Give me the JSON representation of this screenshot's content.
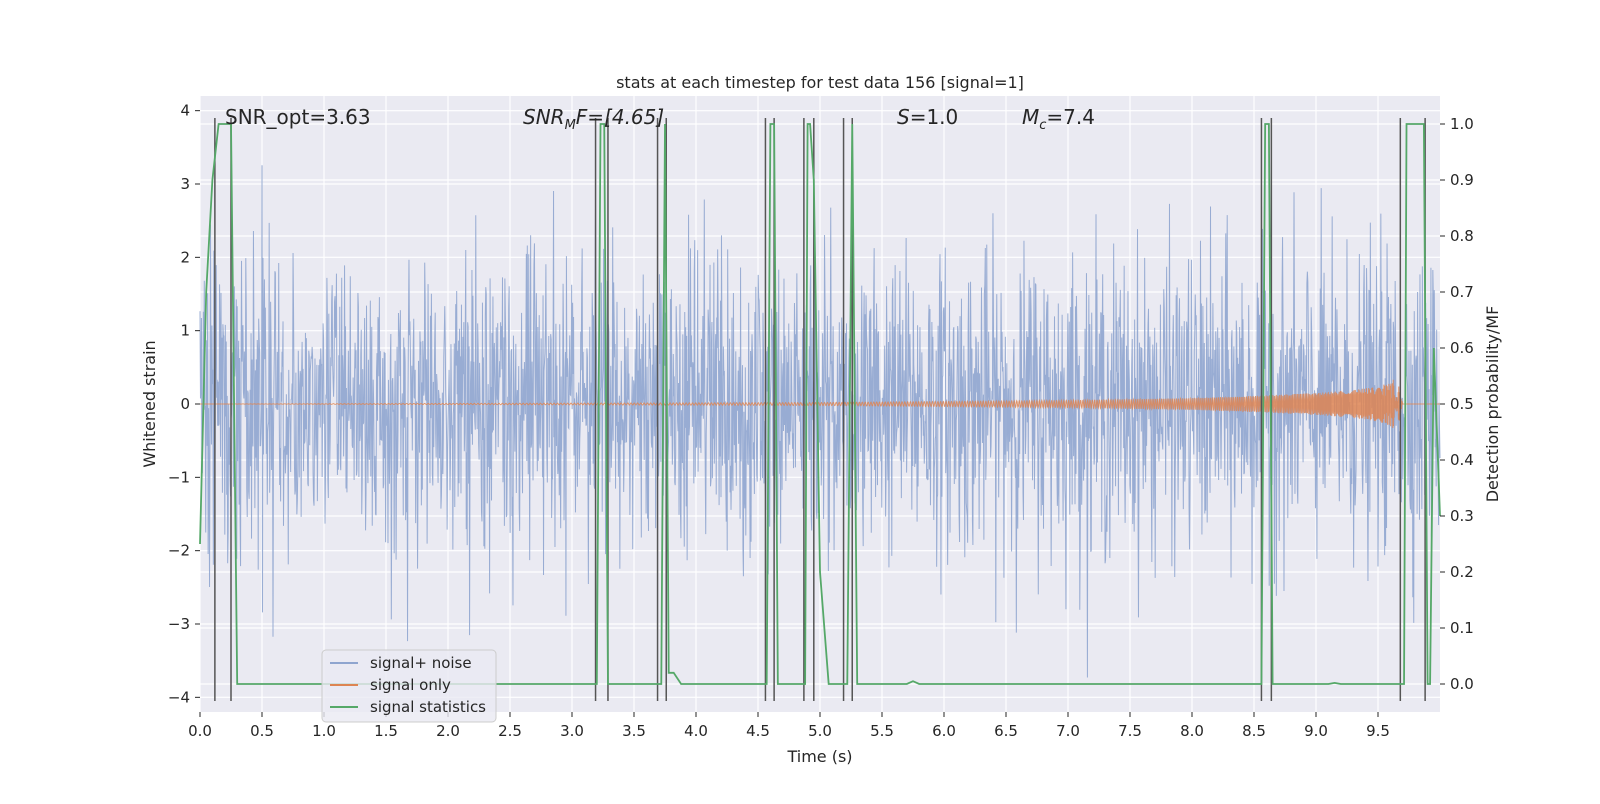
{
  "chart_data": {
    "type": "line",
    "title": "stats at each timestep for test data 156 [signal=1]",
    "xlabel": "Time (s)",
    "ylabel": "Whitened strain",
    "ylabel_right": "Detection probability/MF",
    "xlim": [
      0.0,
      10.0
    ],
    "ylim": [
      -4.2,
      4.2
    ],
    "ylim_right": [
      -0.05,
      1.05
    ],
    "x_ticks": [
      0.0,
      0.5,
      1.0,
      1.5,
      2.0,
      2.5,
      3.0,
      3.5,
      4.0,
      4.5,
      5.0,
      5.5,
      6.0,
      6.5,
      7.0,
      7.5,
      8.0,
      8.5,
      9.0,
      9.5
    ],
    "x_tick_labels": [
      "0.0",
      "0.5",
      "1.0",
      "1.5",
      "2.0",
      "2.5",
      "3.0",
      "3.5",
      "4.0",
      "4.5",
      "5.0",
      "5.5",
      "6.0",
      "6.5",
      "7.0",
      "7.5",
      "8.0",
      "8.5",
      "9.0",
      "9.5"
    ],
    "y_ticks": [
      4,
      3,
      2,
      1,
      0,
      -1,
      -2,
      -3,
      -4
    ],
    "y_tick_labels": [
      "4",
      "3",
      "2",
      "1",
      "0",
      "−1",
      "−2",
      "−3",
      "−4"
    ],
    "y_right_ticks": [
      1.0,
      0.9,
      0.8,
      0.7,
      0.6,
      0.5,
      0.4,
      0.3,
      0.2,
      0.1,
      0.0
    ],
    "y_right_tick_labels": [
      "1.0",
      "0.9",
      "0.8",
      "0.7",
      "0.6",
      "0.5",
      "0.4",
      "0.3",
      "0.2",
      "0.1",
      "0.0"
    ],
    "grid": true,
    "legend_position": "lower-left",
    "annotations": {
      "snr_opt": "SNR_opt=3.63",
      "snr_mf_main": "SNR",
      "snr_mf_sub": "M",
      "snr_mf_rest": "F=[4.65]",
      "s_italic": "S",
      "s_rest": "=1.0",
      "mc_main": "M",
      "mc_sub": "c",
      "mc_rest": "=7.4"
    },
    "series": [
      {
        "name": "signal+ noise",
        "color": "#8fa5cf",
        "kind": "noise",
        "amplitude_typical": 1.6,
        "amplitude_max": 3.9
      },
      {
        "name": "signal only",
        "color": "#dd8452",
        "kind": "chirp",
        "envelope": {
          "x": [
            0.0,
            5.0,
            7.0,
            8.0,
            8.5,
            9.0,
            9.3,
            9.5,
            9.6,
            9.65,
            9.7
          ],
          "amp": [
            0.0,
            0.02,
            0.05,
            0.08,
            0.11,
            0.15,
            0.19,
            0.24,
            0.3,
            0.38,
            0.0
          ]
        }
      },
      {
        "name": "signal statistics",
        "color": "#55a868",
        "kind": "step",
        "x": [
          0.0,
          0.05,
          0.1,
          0.15,
          0.2,
          0.25,
          0.3,
          3.2,
          3.23,
          3.26,
          3.29,
          3.72,
          3.75,
          3.78,
          3.82,
          3.88,
          4.57,
          4.6,
          4.63,
          4.66,
          4.88,
          4.9,
          4.92,
          4.95,
          5.0,
          5.07,
          5.22,
          5.26,
          5.3,
          5.7,
          5.75,
          5.8,
          8.56,
          8.59,
          8.62,
          8.65,
          9.1,
          9.15,
          9.2,
          9.71,
          9.73,
          9.85,
          9.87,
          9.9,
          9.92,
          9.95,
          10.0
        ],
        "y": [
          0.25,
          0.7,
          0.9,
          1.0,
          1.0,
          1.0,
          0.0,
          0.0,
          1.0,
          1.0,
          0.0,
          0.0,
          1.0,
          0.02,
          0.02,
          0.0,
          0.0,
          1.0,
          1.0,
          0.0,
          0.0,
          1.0,
          1.0,
          0.9,
          0.2,
          0.0,
          0.0,
          1.0,
          0.0,
          0.0,
          0.005,
          0.0,
          0.0,
          1.0,
          1.0,
          0.0,
          0.0,
          0.002,
          0.0,
          0.0,
          1.0,
          1.0,
          1.0,
          0.0,
          0.0,
          0.6,
          0.3
        ]
      },
      {
        "name": "markers",
        "color": "#555555",
        "kind": "vlines",
        "x": [
          0.12,
          0.25,
          3.19,
          3.29,
          3.69,
          3.76,
          4.56,
          4.63,
          4.87,
          4.95,
          5.19,
          5.26,
          8.56,
          8.64,
          9.68,
          9.88
        ],
        "y_bottom": -4.05,
        "y_top": 3.9
      }
    ]
  }
}
